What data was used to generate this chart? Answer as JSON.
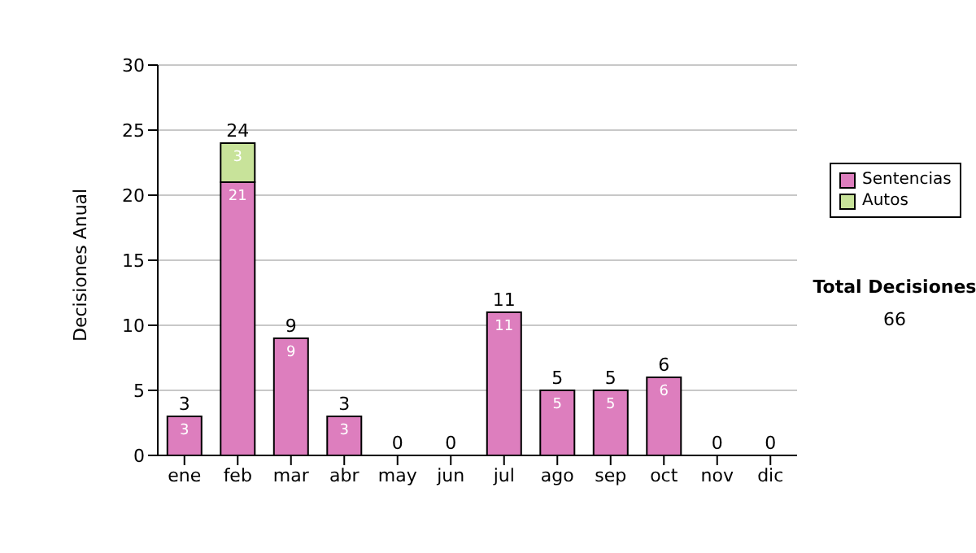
{
  "chart_data": {
    "type": "bar",
    "stacked": true,
    "ylabel": "Decisiones Anual",
    "categories": [
      "ene",
      "feb",
      "mar",
      "abr",
      "may",
      "jun",
      "jul",
      "ago",
      "sep",
      "oct",
      "nov",
      "dic"
    ],
    "series": [
      {
        "name": "Sentencias",
        "color": "#dd7ebe",
        "values": [
          3,
          21,
          9,
          3,
          0,
          0,
          11,
          5,
          5,
          6,
          0,
          0
        ],
        "value_labels": [
          "3",
          "21",
          "9",
          "3",
          null,
          null,
          "11",
          "5",
          "5",
          "6",
          null,
          null
        ]
      },
      {
        "name": "Autos",
        "color": "#c8e39a",
        "values": [
          0,
          3,
          0,
          0,
          0,
          0,
          0,
          0,
          0,
          0,
          0,
          0
        ],
        "value_labels": [
          null,
          "3",
          null,
          null,
          null,
          null,
          null,
          null,
          null,
          null,
          null,
          null
        ]
      }
    ],
    "totals": [
      "3",
      "24",
      "9",
      "3",
      "0",
      "0",
      "11",
      "5",
      "5",
      "6",
      "0",
      "0"
    ],
    "ylim": [
      0,
      30
    ],
    "yticks": [
      0,
      5,
      10,
      15,
      20,
      25,
      30
    ],
    "grid": "y",
    "legend": "right",
    "annotations": [
      "Total Decisiones",
      "66"
    ]
  }
}
